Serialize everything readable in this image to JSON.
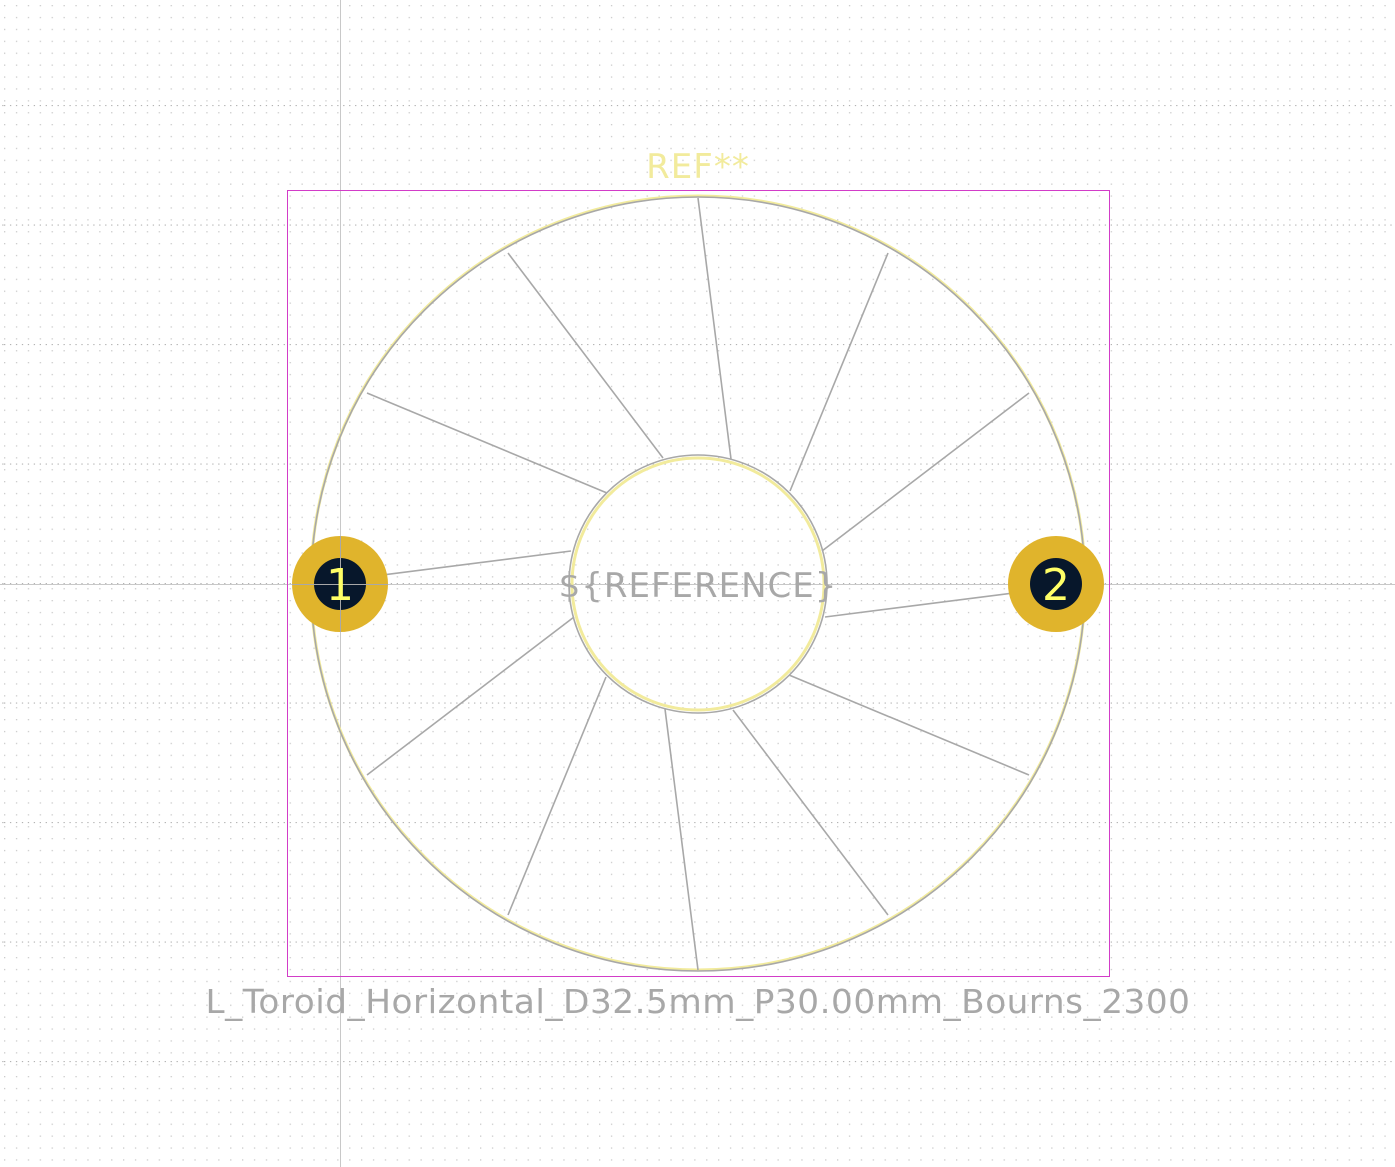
{
  "footprint": {
    "reference": "REF**",
    "value_text": "${REFERENCE}",
    "name": "L_Toroid_Horizontal_D32.5mm_P30.00mm_Bourns_2300"
  },
  "pads": [
    {
      "number": "1"
    },
    {
      "number": "2"
    }
  ],
  "colors": {
    "background": "#ffffff",
    "grid_dot": "#9a9a9a",
    "crosshair": "#c8c8c8",
    "courtyard": "#d23cc8",
    "silkscreen": "#f2eb9c",
    "fabrication": "#a8a8a8",
    "pad_copper": "#e0b42c",
    "pad_hole": "#07172b",
    "pad_number": "#ffff66"
  },
  "icons": [
    "crosshair-icon"
  ]
}
